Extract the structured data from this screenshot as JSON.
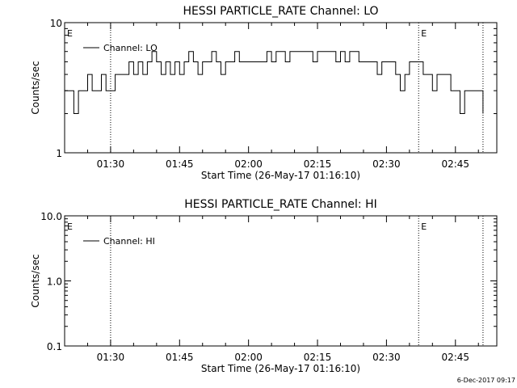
{
  "footer": {
    "date_stamp": "6-Dec-2017 09:17"
  },
  "chart_data": [
    {
      "type": "line",
      "title": "HESSI PARTICLE_RATE Channel: LO",
      "xlabel": "Start Time (26-May-17 01:16:10)",
      "ylabel": "Counts/sec",
      "yscale": "log",
      "ylim": [
        1,
        10
      ],
      "yticks": [
        "1",
        "10"
      ],
      "xlim": [
        "01:20",
        "02:54"
      ],
      "xticks": [
        "01:30",
        "01:45",
        "02:00",
        "02:15",
        "02:30",
        "02:45"
      ],
      "legend": {
        "label": "Channel: LO",
        "placement": "top-left"
      },
      "event_markers": [
        {
          "time": "01:20",
          "label": "E"
        },
        {
          "time": "01:30",
          "label": ""
        },
        {
          "time": "02:37",
          "label": "E"
        },
        {
          "time": "02:51",
          "label": ""
        }
      ],
      "series": [
        {
          "name": "Channel: LO",
          "x": [
            "01:20",
            "01:21",
            "01:22",
            "01:23",
            "01:24",
            "01:25",
            "01:26",
            "01:27",
            "01:28",
            "01:29",
            "01:30",
            "01:31",
            "01:32",
            "01:33",
            "01:34",
            "01:35",
            "01:36",
            "01:37",
            "01:38",
            "01:39",
            "01:40",
            "01:41",
            "01:42",
            "01:43",
            "01:44",
            "01:45",
            "01:46",
            "01:47",
            "01:48",
            "01:49",
            "01:50",
            "01:51",
            "01:52",
            "01:53",
            "01:54",
            "01:55",
            "01:56",
            "01:57",
            "01:58",
            "01:59",
            "02:00",
            "02:01",
            "02:02",
            "02:03",
            "02:04",
            "02:05",
            "02:06",
            "02:07",
            "02:08",
            "02:09",
            "02:10",
            "02:11",
            "02:12",
            "02:13",
            "02:14",
            "02:15",
            "02:16",
            "02:17",
            "02:18",
            "02:19",
            "02:20",
            "02:21",
            "02:22",
            "02:23",
            "02:24",
            "02:25",
            "02:26",
            "02:27",
            "02:28",
            "02:29",
            "02:30",
            "02:31",
            "02:32",
            "02:33",
            "02:34",
            "02:35",
            "02:36",
            "02:37",
            "02:38",
            "02:39",
            "02:40",
            "02:41",
            "02:42",
            "02:43",
            "02:44",
            "02:45",
            "02:46",
            "02:47",
            "02:48",
            "02:49",
            "02:50",
            "02:51"
          ],
          "y": [
            3,
            3,
            2,
            3,
            3,
            4,
            3,
            3,
            4,
            3,
            3,
            4,
            4,
            4,
            5,
            4,
            5,
            4,
            5,
            6,
            5,
            4,
            5,
            4,
            5,
            4,
            5,
            6,
            5,
            4,
            5,
            5,
            6,
            5,
            4,
            5,
            5,
            6,
            5,
            5,
            5,
            5,
            5,
            5,
            6,
            5,
            6,
            6,
            5,
            6,
            6,
            6,
            6,
            6,
            5,
            6,
            6,
            6,
            6,
            5,
            6,
            5,
            6,
            6,
            5,
            5,
            5,
            5,
            4,
            5,
            5,
            5,
            4,
            3,
            4,
            5,
            5,
            5,
            4,
            4,
            3,
            4,
            4,
            4,
            3,
            3,
            2,
            3,
            3,
            3,
            3,
            2
          ]
        }
      ]
    },
    {
      "type": "line",
      "title": "HESSI PARTICLE_RATE Channel: HI",
      "xlabel": "Start Time (26-May-17 01:16:10)",
      "ylabel": "Counts/sec",
      "yscale": "log",
      "ylim": [
        0.1,
        10
      ],
      "yticks": [
        "0.1",
        "1.0",
        "10.0"
      ],
      "xlim": [
        "01:20",
        "02:54"
      ],
      "xticks": [
        "01:30",
        "01:45",
        "02:00",
        "02:15",
        "02:30",
        "02:45"
      ],
      "legend": {
        "label": "Channel: HI",
        "placement": "top-left"
      },
      "event_markers": [
        {
          "time": "01:20",
          "label": "E"
        },
        {
          "time": "01:30",
          "label": ""
        },
        {
          "time": "02:37",
          "label": "E"
        },
        {
          "time": "02:51",
          "label": ""
        }
      ],
      "series": [
        {
          "name": "Channel: HI",
          "x": [],
          "y": []
        }
      ]
    }
  ]
}
